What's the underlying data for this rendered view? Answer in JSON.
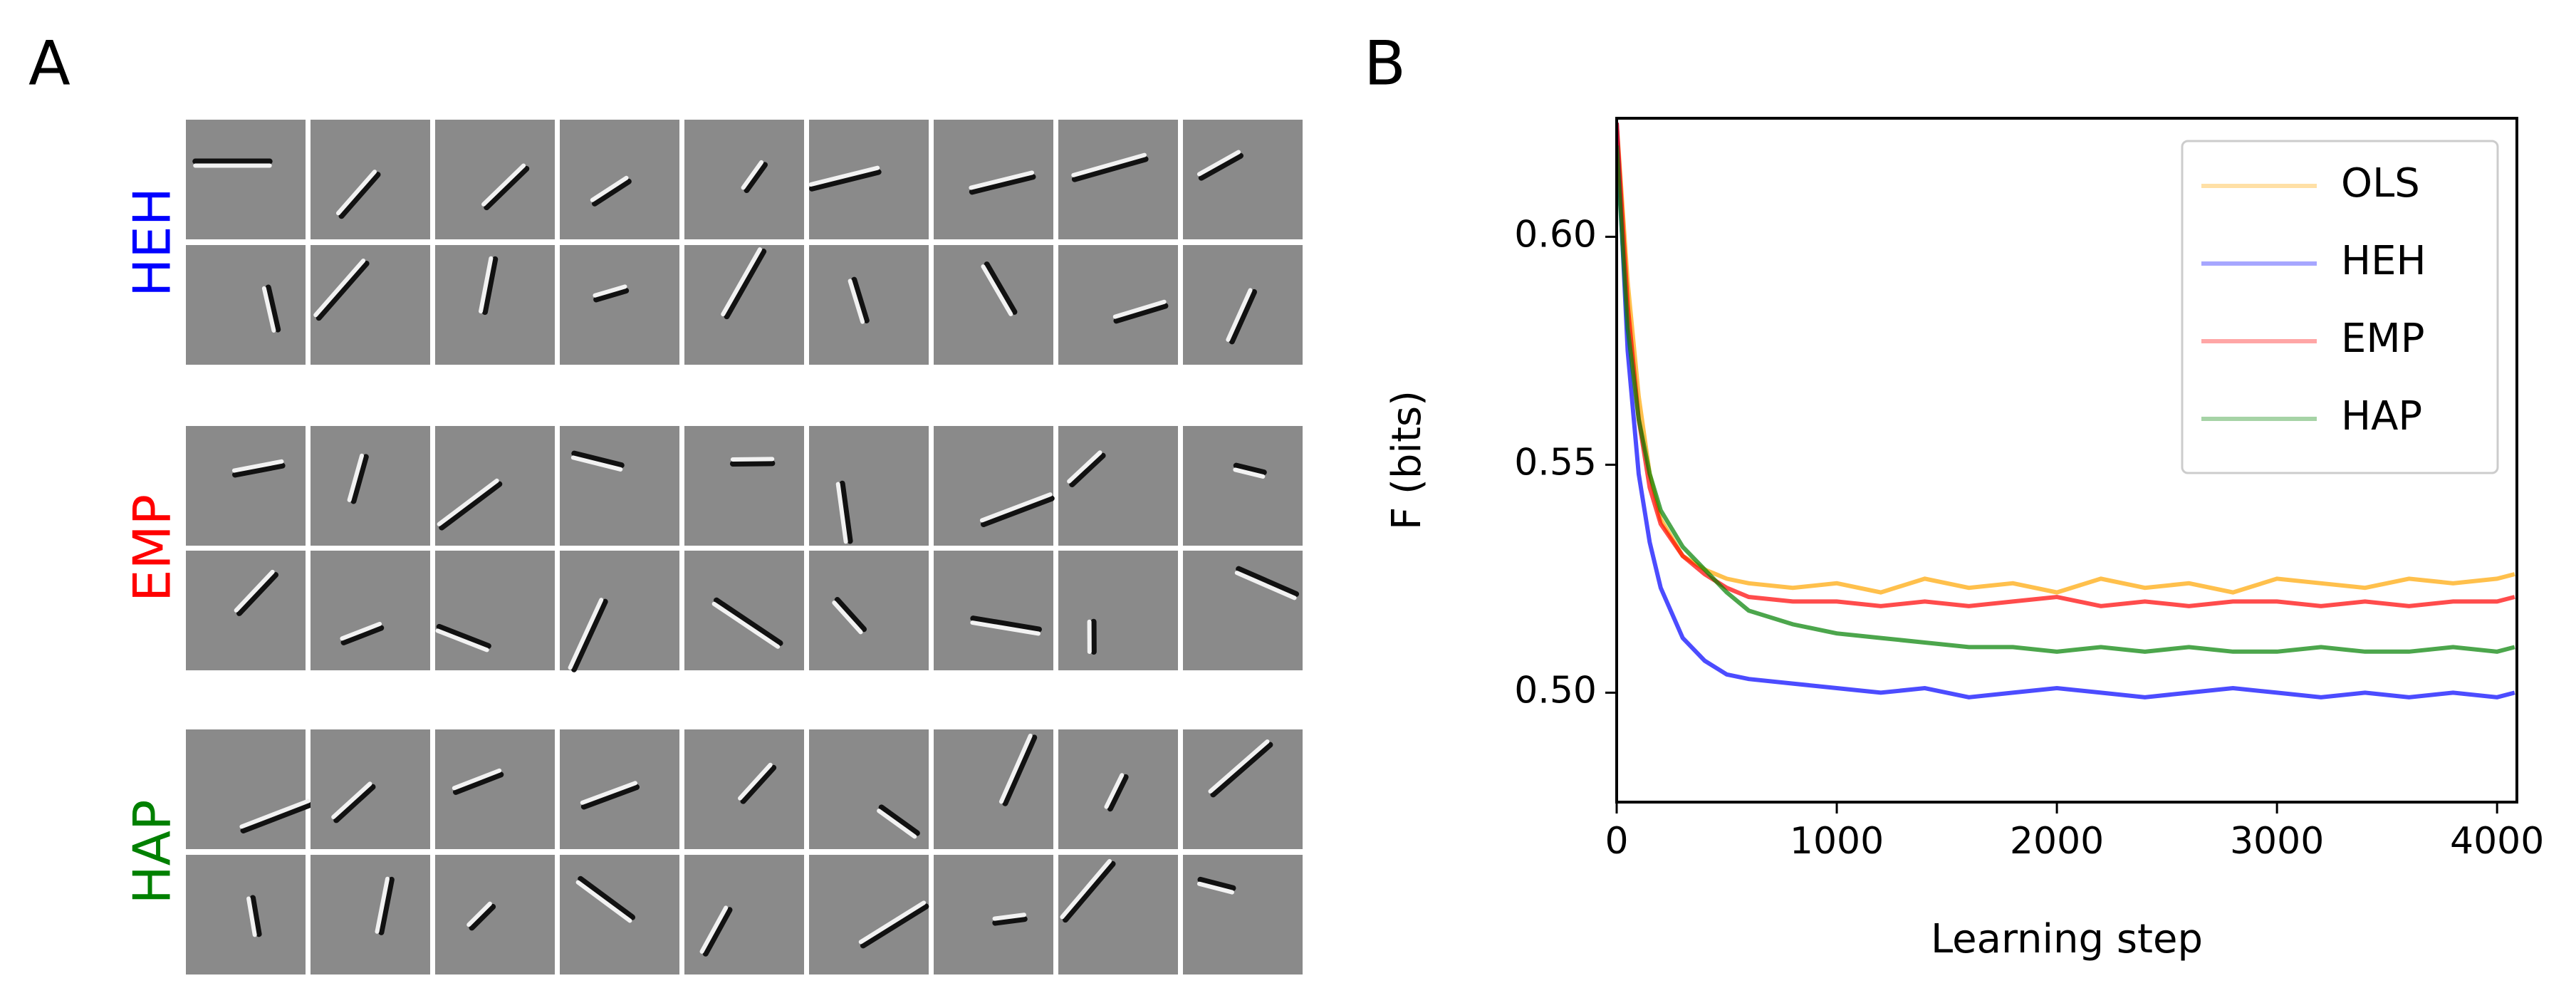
{
  "panel_labels": [
    "A",
    "B"
  ],
  "filter_rows": [
    {
      "label": "HEH",
      "color": "#0000ff"
    },
    {
      "label": "EMP",
      "color": "#ff0000"
    },
    {
      "label": "HAP",
      "color": "#008000"
    }
  ],
  "chart_data": {
    "type": "line",
    "xlabel": "Learning step",
    "ylabel": "F (bits)",
    "x": [
      0,
      50,
      100,
      150,
      200,
      300,
      400,
      500,
      600,
      800,
      1000,
      1200,
      1400,
      1600,
      1800,
      2000,
      2200,
      2400,
      2600,
      2800,
      3000,
      3200,
      3400,
      3600,
      3800,
      4000,
      4080
    ],
    "series": [
      {
        "name": "OLS",
        "color": "#ffa500",
        "values": [
          0.625,
          0.59,
          0.565,
          0.548,
          0.538,
          0.53,
          0.527,
          0.525,
          0.524,
          0.523,
          0.524,
          0.522,
          0.525,
          0.523,
          0.524,
          0.522,
          0.525,
          0.523,
          0.524,
          0.522,
          0.525,
          0.524,
          0.523,
          0.525,
          0.524,
          0.525,
          0.526
        ]
      },
      {
        "name": "HEH",
        "color": "#0000ff",
        "values": [
          0.625,
          0.575,
          0.548,
          0.533,
          0.523,
          0.512,
          0.507,
          0.504,
          0.503,
          0.502,
          0.501,
          0.5,
          0.501,
          0.499,
          0.5,
          0.501,
          0.5,
          0.499,
          0.5,
          0.501,
          0.5,
          0.499,
          0.5,
          0.499,
          0.5,
          0.499,
          0.5
        ]
      },
      {
        "name": "EMP",
        "color": "#ff0000",
        "values": [
          0.625,
          0.585,
          0.56,
          0.545,
          0.537,
          0.53,
          0.526,
          0.523,
          0.521,
          0.52,
          0.52,
          0.519,
          0.52,
          0.519,
          0.52,
          0.521,
          0.519,
          0.52,
          0.519,
          0.52,
          0.52,
          0.519,
          0.52,
          0.519,
          0.52,
          0.52,
          0.521
        ]
      },
      {
        "name": "HAP",
        "color": "#008000",
        "values": [
          0.62,
          0.58,
          0.56,
          0.548,
          0.54,
          0.532,
          0.527,
          0.522,
          0.518,
          0.515,
          0.513,
          0.512,
          0.511,
          0.51,
          0.51,
          0.509,
          0.51,
          0.509,
          0.51,
          0.509,
          0.509,
          0.51,
          0.509,
          0.509,
          0.51,
          0.509,
          0.51
        ]
      }
    ],
    "xlim": [
      0,
      4090
    ],
    "ylim": [
      0.476,
      0.626
    ],
    "xticks": [
      0,
      1000,
      2000,
      3000,
      4000
    ],
    "yticks": [
      {
        "value": 0.5,
        "label": "0.50"
      },
      0.55,
      {
        "value": 0.6,
        "label": "0.60"
      }
    ],
    "legend": "upper right"
  }
}
